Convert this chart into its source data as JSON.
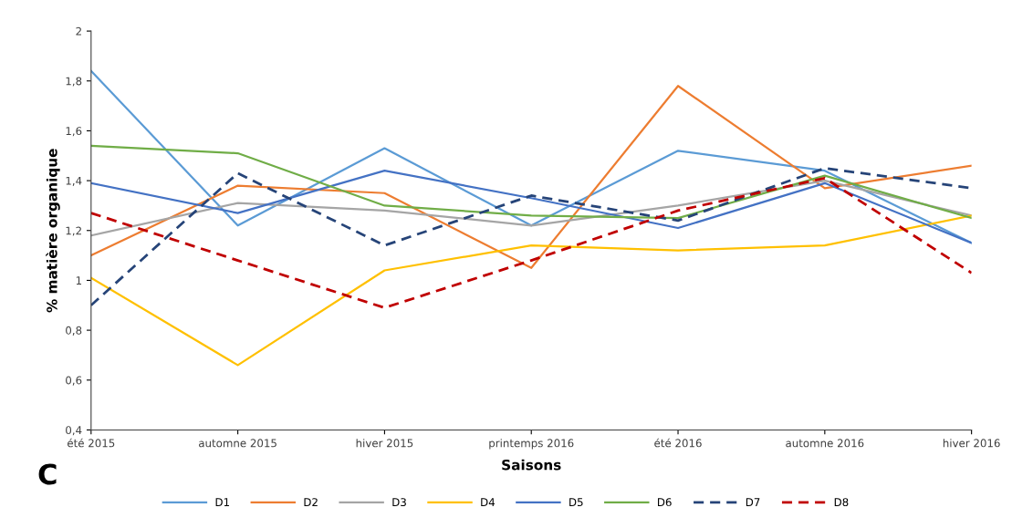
{
  "chart_data": {
    "type": "line",
    "xlabel": "Saisons",
    "ylabel": "% matière organique",
    "categories": [
      "été 2015",
      "automne 2015",
      "hiver 2015",
      "printemps 2016",
      "été 2016",
      "automne 2016",
      "hiver 2016"
    ],
    "series": [
      {
        "name": "D1",
        "color": "#5b9bd5",
        "values": [
          1.84,
          1.22,
          1.53,
          1.22,
          1.52,
          1.44,
          1.15
        ]
      },
      {
        "name": "D2",
        "color": "#ed7d31",
        "values": [
          1.1,
          1.38,
          1.35,
          1.05,
          1.78,
          1.37,
          1.46
        ]
      },
      {
        "name": "D3",
        "color": "#a5a5a5",
        "values": [
          1.18,
          1.31,
          1.28,
          1.22,
          1.3,
          1.4,
          1.26
        ]
      },
      {
        "name": "D4",
        "color": "#ffc000",
        "values": [
          1.01,
          0.66,
          1.04,
          1.14,
          1.12,
          1.14,
          1.26
        ]
      },
      {
        "name": "D5",
        "color": "#4472c4",
        "values": [
          1.39,
          1.27,
          1.44,
          1.33,
          1.21,
          1.39,
          1.15
        ]
      },
      {
        "name": "D6",
        "color": "#70ad47",
        "values": [
          1.54,
          1.51,
          1.3,
          1.26,
          1.25,
          1.42,
          1.25
        ]
      },
      {
        "name": "D7",
        "color": "#264478",
        "line_style": "dashed",
        "values": [
          0.9,
          1.43,
          1.14,
          1.34,
          1.24,
          1.45,
          1.37
        ]
      },
      {
        "name": "D8",
        "color": "#c00000",
        "line_style": "dashed",
        "values": [
          1.27,
          1.08,
          0.89,
          1.08,
          1.28,
          1.41,
          1.03
        ]
      }
    ],
    "ylim": [
      0.4,
      2
    ],
    "yticks": [
      {
        "value": 0.4,
        "label": "0,4"
      },
      {
        "value": 0.6,
        "label": "0,6"
      },
      {
        "value": 0.8,
        "label": "0,8"
      },
      1,
      {
        "value": 1.2,
        "label": "1,2"
      },
      {
        "value": 1.4,
        "label": "1,4"
      },
      {
        "value": 1.6,
        "label": "1,6"
      },
      {
        "value": 1.8,
        "label": "1,8"
      },
      2
    ],
    "grid": false,
    "legend": "bottom",
    "line_style": "solid",
    "marker": "none",
    "annotations": [
      "C"
    ]
  }
}
